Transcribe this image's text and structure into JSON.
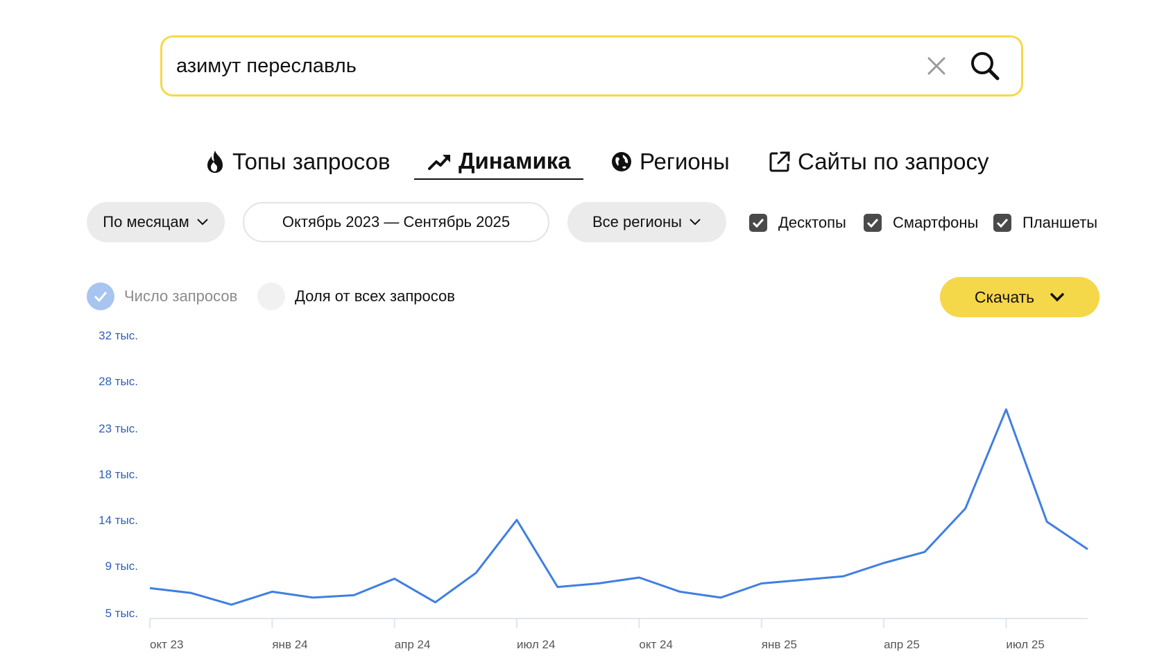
{
  "search": {
    "value": "азимут переславль"
  },
  "tabs": [
    {
      "label": "Топы запросов",
      "icon": "fire-icon",
      "active": false
    },
    {
      "label": "Динамика",
      "icon": "trend-up-icon",
      "active": true
    },
    {
      "label": "Регионы",
      "icon": "globe-icon",
      "active": false
    },
    {
      "label": "Сайты по запросу",
      "icon": "external-link-icon",
      "active": false
    }
  ],
  "filters": {
    "period_group": "По месяцам",
    "date_range": "Октябрь 2023 — Сентябрь 2025",
    "region": "Все регионы",
    "devices": [
      {
        "label": "Десктопы",
        "checked": true
      },
      {
        "label": "Смартфоны",
        "checked": true
      },
      {
        "label": "Планшеты",
        "checked": true
      }
    ]
  },
  "metric": {
    "options": [
      {
        "label": "Число запросов",
        "selected": true
      },
      {
        "label": "Доля от всех запросов",
        "selected": false
      }
    ]
  },
  "download": {
    "label": "Скачать"
  },
  "colors": {
    "accent_yellow": "#f5d74a",
    "line_blue": "#3f7fe0",
    "axis_label_blue": "#2f5fb5"
  },
  "chart_data": {
    "type": "line",
    "y_ticks": [
      "32 тыс.",
      "28 тыс.",
      "23 тыс.",
      "18 тыс.",
      "14 тыс.",
      "9 тыс.",
      "5 тыс."
    ],
    "y_tick_values": [
      32000,
      28000,
      23000,
      18000,
      14000,
      9000,
      5000
    ],
    "x_ticks": [
      "окт 23",
      "янв 24",
      "апр 24",
      "июл 24",
      "окт 24",
      "янв 25",
      "апр 25",
      "июл 25"
    ],
    "x": [
      "окт 23",
      "ноя 23",
      "дек 23",
      "янв 24",
      "фев 24",
      "мар 24",
      "апр 24",
      "май 24",
      "июн 24",
      "июл 24",
      "авг 24",
      "сен 24",
      "окт 24",
      "ноя 24",
      "дек 24",
      "янв 25",
      "фев 25",
      "мар 25",
      "апр 25",
      "май 25",
      "июн 25",
      "июл 25",
      "авг 25",
      "сен 25"
    ],
    "series": [
      {
        "values": [
          7100,
          6700,
          5700,
          6800,
          6300,
          6500,
          7900,
          5900,
          8400,
          14000,
          7200,
          7500,
          8000,
          6800,
          6300,
          7500,
          7800,
          8100,
          9300,
          10500,
          15000,
          25000,
          13800,
          10800
        ]
      }
    ]
  }
}
